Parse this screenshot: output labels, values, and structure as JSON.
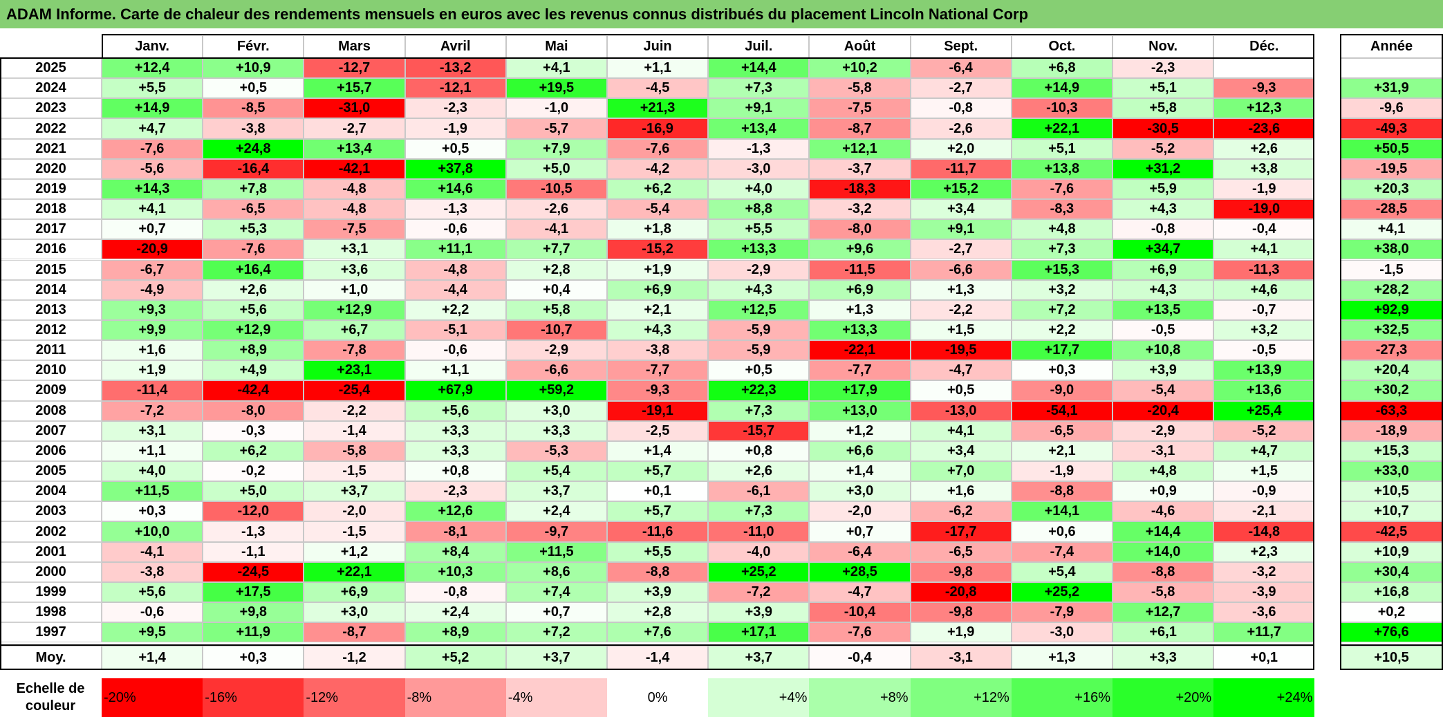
{
  "title": "ADAM Informe. Carte de chaleur des rendements mensuels en euros avec les revenus connus distribués du placement Lincoln National Corp",
  "colors": {
    "title_bar": "#86cf73",
    "neg_max": "#ff0000",
    "pos_max": "#00ff00",
    "zero": "#ffffff"
  },
  "chart_data": {
    "type": "heatmap",
    "months": [
      "Janv.",
      "Févr.",
      "Mars",
      "Avril",
      "Mai",
      "Juin",
      "Juil.",
      "Août",
      "Sept.",
      "Oct.",
      "Nov.",
      "Déc."
    ],
    "year_header": "Année",
    "avg_label": "Moy.",
    "rows": [
      {
        "year": "2025",
        "m": [
          "+12,4",
          "+10,9",
          "-12,7",
          "-13,2",
          "+4,1",
          "+1,1",
          "+14,4",
          "+10,2",
          "-6,4",
          "+6,8",
          "-2,3",
          ""
        ],
        "annual": ""
      },
      {
        "year": "2024",
        "m": [
          "+5,5",
          "+0,5",
          "+15,7",
          "-12,1",
          "+19,5",
          "-4,5",
          "+7,3",
          "-5,8",
          "-2,7",
          "+14,9",
          "+5,1",
          "-9,3"
        ],
        "annual": "+31,9"
      },
      {
        "year": "2023",
        "m": [
          "+14,9",
          "-8,5",
          "-31,0",
          "-2,3",
          "-1,0",
          "+21,3",
          "+9,1",
          "-7,5",
          "-0,8",
          "-10,3",
          "+5,8",
          "+12,3"
        ],
        "annual": "-9,6"
      },
      {
        "year": "2022",
        "m": [
          "+4,7",
          "-3,8",
          "-2,7",
          "-1,9",
          "-5,7",
          "-16,9",
          "+13,4",
          "-8,7",
          "-2,6",
          "+22,1",
          "-30,5",
          "-23,6"
        ],
        "annual": "-49,3"
      },
      {
        "year": "2021",
        "m": [
          "-7,6",
          "+24,8",
          "+13,4",
          "+0,5",
          "+7,9",
          "-7,6",
          "-1,3",
          "+12,1",
          "+2,0",
          "+5,1",
          "-5,2",
          "+2,6"
        ],
        "annual": "+50,5"
      },
      {
        "year": "2020",
        "m": [
          "-5,6",
          "-16,4",
          "-42,1",
          "+37,8",
          "+5,0",
          "-4,2",
          "-3,0",
          "-3,7",
          "-11,7",
          "+13,8",
          "+31,2",
          "+3,8"
        ],
        "annual": "-19,5"
      },
      {
        "year": "2019",
        "m": [
          "+14,3",
          "+7,8",
          "-4,8",
          "+14,6",
          "-10,5",
          "+6,2",
          "+4,0",
          "-18,3",
          "+15,2",
          "-7,6",
          "+5,9",
          "-1,9"
        ],
        "annual": "+20,3"
      },
      {
        "year": "2018",
        "m": [
          "+4,1",
          "-6,5",
          "-4,8",
          "-1,3",
          "-2,6",
          "-5,4",
          "+8,8",
          "-3,2",
          "+3,4",
          "-8,3",
          "+4,3",
          "-19,0"
        ],
        "annual": "-28,5"
      },
      {
        "year": "2017",
        "m": [
          "+0,7",
          "+5,3",
          "-7,5",
          "-0,6",
          "-4,1",
          "+1,8",
          "+5,5",
          "-8,0",
          "+9,1",
          "+4,8",
          "-0,8",
          "-0,4"
        ],
        "annual": "+4,1"
      },
      {
        "year": "2016",
        "m": [
          "-20,9",
          "-7,6",
          "+3,1",
          "+11,1",
          "+7,7",
          "-15,2",
          "+13,3",
          "+9,6",
          "-2,7",
          "+7,3",
          "+34,7",
          "+4,1"
        ],
        "annual": "+38,0"
      },
      {
        "year": "2015",
        "m": [
          "-6,7",
          "+16,4",
          "+3,6",
          "-4,8",
          "+2,8",
          "+1,9",
          "-2,9",
          "-11,5",
          "-6,6",
          "+15,3",
          "+6,9",
          "-11,3"
        ],
        "annual": "-1,5"
      },
      {
        "year": "2014",
        "m": [
          "-4,9",
          "+2,6",
          "+1,0",
          "-4,4",
          "+0,4",
          "+6,9",
          "+4,3",
          "+6,9",
          "+1,3",
          "+3,2",
          "+4,3",
          "+4,6"
        ],
        "annual": "+28,2"
      },
      {
        "year": "2013",
        "m": [
          "+9,3",
          "+5,6",
          "+12,9",
          "+2,2",
          "+5,8",
          "+2,1",
          "+12,5",
          "+1,3",
          "-2,2",
          "+7,2",
          "+13,5",
          "-0,7"
        ],
        "annual": "+92,9"
      },
      {
        "year": "2012",
        "m": [
          "+9,9",
          "+12,9",
          "+6,7",
          "-5,1",
          "-10,7",
          "+4,3",
          "-5,9",
          "+13,3",
          "+1,5",
          "+2,2",
          "-0,5",
          "+3,2"
        ],
        "annual": "+32,5"
      },
      {
        "year": "2011",
        "m": [
          "+1,6",
          "+8,9",
          "-7,8",
          "-0,6",
          "-2,9",
          "-3,8",
          "-5,9",
          "-22,1",
          "-19,5",
          "+17,7",
          "+10,8",
          "-0,5"
        ],
        "annual": "-27,3"
      },
      {
        "year": "2010",
        "m": [
          "+1,9",
          "+4,9",
          "+23,1",
          "+1,1",
          "-6,6",
          "-7,7",
          "+0,5",
          "-7,7",
          "-4,7",
          "+0,3",
          "+3,9",
          "+13,9"
        ],
        "annual": "+20,4"
      },
      {
        "year": "2009",
        "m": [
          "-11,4",
          "-42,4",
          "-25,4",
          "+67,9",
          "+59,2",
          "-9,3",
          "+22,3",
          "+17,9",
          "+0,5",
          "-9,0",
          "-5,4",
          "+13,6"
        ],
        "annual": "+30,2"
      },
      {
        "year": "2008",
        "m": [
          "-7,2",
          "-8,0",
          "-2,2",
          "+5,6",
          "+3,0",
          "-19,1",
          "+7,3",
          "+13,0",
          "-13,0",
          "-54,1",
          "-20,4",
          "+25,4"
        ],
        "annual": "-63,3"
      },
      {
        "year": "2007",
        "m": [
          "+3,1",
          "-0,3",
          "-1,4",
          "+3,3",
          "+3,3",
          "-2,5",
          "-15,7",
          "+1,2",
          "+4,1",
          "-6,5",
          "-2,9",
          "-5,2"
        ],
        "annual": "-18,9"
      },
      {
        "year": "2006",
        "m": [
          "+1,1",
          "+6,2",
          "-5,8",
          "+3,3",
          "-5,3",
          "+1,4",
          "+0,8",
          "+6,6",
          "+3,4",
          "+2,1",
          "-3,1",
          "+4,7"
        ],
        "annual": "+15,3"
      },
      {
        "year": "2005",
        "m": [
          "+4,0",
          "-0,2",
          "-1,5",
          "+0,8",
          "+5,4",
          "+5,7",
          "+2,6",
          "+1,4",
          "+7,0",
          "-1,9",
          "+4,8",
          "+1,5"
        ],
        "annual": "+33,0"
      },
      {
        "year": "2004",
        "m": [
          "+11,5",
          "+5,0",
          "+3,7",
          "-2,3",
          "+3,7",
          "+0,1",
          "-6,1",
          "+3,0",
          "+1,6",
          "-8,8",
          "+0,9",
          "-0,9"
        ],
        "annual": "+10,5"
      },
      {
        "year": "2003",
        "m": [
          "+0,3",
          "-12,0",
          "-2,0",
          "+12,6",
          "+2,4",
          "+5,7",
          "+7,3",
          "-2,0",
          "-6,2",
          "+14,1",
          "-4,6",
          "-2,1"
        ],
        "annual": "+10,7"
      },
      {
        "year": "2002",
        "m": [
          "+10,0",
          "-1,3",
          "-1,5",
          "-8,1",
          "-9,7",
          "-11,6",
          "-11,0",
          "+0,7",
          "-17,7",
          "+0,6",
          "+14,4",
          "-14,8"
        ],
        "annual": "-42,5"
      },
      {
        "year": "2001",
        "m": [
          "-4,1",
          "-1,1",
          "+1,2",
          "+8,4",
          "+11,5",
          "+5,5",
          "-4,0",
          "-6,4",
          "-6,5",
          "-7,4",
          "+14,0",
          "+2,3"
        ],
        "annual": "+10,9"
      },
      {
        "year": "2000",
        "m": [
          "-3,8",
          "-24,5",
          "+22,1",
          "+10,3",
          "+8,6",
          "-8,8",
          "+25,2",
          "+28,5",
          "-9,8",
          "+5,4",
          "-8,8",
          "-3,2"
        ],
        "annual": "+30,4"
      },
      {
        "year": "1999",
        "m": [
          "+5,6",
          "+17,5",
          "+6,9",
          "-0,8",
          "+7,4",
          "+3,9",
          "-7,2",
          "-4,7",
          "-20,8",
          "+25,2",
          "-5,8",
          "-3,9"
        ],
        "annual": "+16,8"
      },
      {
        "year": "1998",
        "m": [
          "-0,6",
          "+9,8",
          "+3,0",
          "+2,4",
          "+0,7",
          "+2,8",
          "+3,9",
          "-10,4",
          "-9,8",
          "-7,9",
          "+12,7",
          "-3,6"
        ],
        "annual": "+0,2"
      },
      {
        "year": "1997",
        "m": [
          "+9,5",
          "+11,9",
          "-8,7",
          "+8,9",
          "+7,2",
          "+7,6",
          "+17,1",
          "-7,6",
          "+1,9",
          "-3,0",
          "+6,1",
          "+11,7"
        ],
        "annual": "+76,6"
      }
    ],
    "averages": {
      "m": [
        "+1,4",
        "+0,3",
        "-1,2",
        "+5,2",
        "+3,7",
        "-1,4",
        "+3,7",
        "-0,4",
        "-3,1",
        "+1,3",
        "+3,3",
        "+0,1"
      ],
      "annual": "+10,5"
    },
    "scale_label": "Echelle de couleur",
    "scale": [
      "-20%",
      "-16%",
      "-12%",
      "-8%",
      "-4%",
      "0%",
      "+4%",
      "+8%",
      "+12%",
      "+16%",
      "+20%",
      "+24%"
    ],
    "scale_values": [
      -20,
      -16,
      -12,
      -8,
      -4,
      0,
      4,
      8,
      12,
      16,
      20,
      24
    ]
  }
}
